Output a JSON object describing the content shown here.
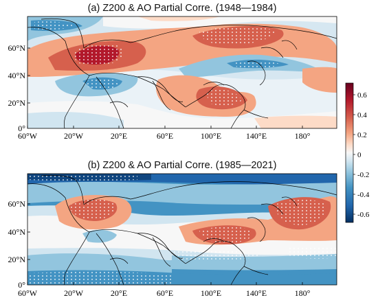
{
  "panels": [
    {
      "id": "a",
      "title": "(a) Z200 & AO Partial Corre. (1948—1984)",
      "lat_ticks": [
        "60°N",
        "40°N",
        "20°N",
        "0°"
      ],
      "lon_ticks": [
        "60°W",
        "20°W",
        "20°E",
        "60°E",
        "100°E",
        "140°E",
        "180°"
      ]
    },
    {
      "id": "b",
      "title": "(b) Z200 & AO Partial Corre. (1985—2021)",
      "lat_ticks": [
        "60°N",
        "40°N",
        "20°N",
        "0°"
      ],
      "lon_ticks": [
        "60°W",
        "20°W",
        "20°E",
        "60°E",
        "100°E",
        "140°E",
        "180°"
      ]
    }
  ],
  "colorbar": {
    "ticks": [
      "0.6",
      "0.4",
      "0.2",
      "0",
      "-0.2",
      "-0.4",
      "-0.6"
    ],
    "range": [
      -0.7,
      0.7
    ],
    "colors": [
      "#67001f",
      "#b2182b",
      "#d6604d",
      "#f4a582",
      "#fddbc7",
      "#f7f7f7",
      "#d1e5f0",
      "#92c5de",
      "#4393c3",
      "#2166ac",
      "#053061"
    ]
  },
  "map_extent": {
    "lon": [
      -60,
      210
    ],
    "lat": [
      0,
      80
    ]
  }
}
